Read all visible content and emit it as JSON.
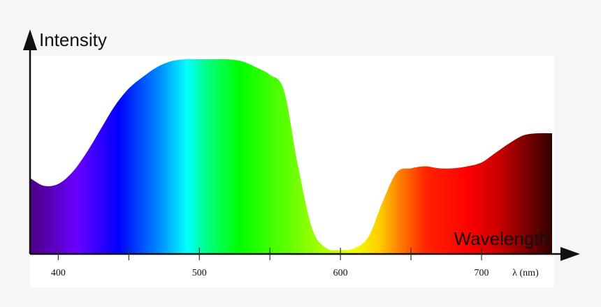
{
  "chart_data": {
    "type": "area",
    "title": "",
    "ylabel": "Intensity",
    "xlabel": "Wavelength",
    "x_unit_label": "λ (nm)",
    "xlim": [
      380,
      750
    ],
    "ylim": [
      0,
      1
    ],
    "x_ticks": [
      400,
      450,
      500,
      550,
      600,
      650,
      700
    ],
    "x_tick_labels": [
      "400",
      "500",
      "600",
      "700"
    ],
    "x_tick_labeled_values": [
      400,
      500,
      600,
      700
    ],
    "grid": false,
    "legend": "none",
    "fill": "visible spectrum gradient (violet to dark red)",
    "x": [
      380,
      390,
      400,
      410,
      420,
      430,
      440,
      450,
      460,
      470,
      480,
      490,
      500,
      510,
      520,
      530,
      540,
      550,
      560,
      570,
      580,
      590,
      600,
      610,
      620,
      630,
      640,
      650,
      660,
      670,
      680,
      690,
      700,
      710,
      720,
      730,
      740,
      750
    ],
    "y": [
      0.39,
      0.35,
      0.36,
      0.42,
      0.52,
      0.64,
      0.76,
      0.85,
      0.91,
      0.96,
      0.99,
      1.0,
      1.0,
      1.0,
      1.0,
      0.99,
      0.96,
      0.92,
      0.84,
      0.45,
      0.13,
      0.03,
      0.02,
      0.03,
      0.09,
      0.27,
      0.42,
      0.44,
      0.45,
      0.44,
      0.44,
      0.45,
      0.47,
      0.52,
      0.57,
      0.61,
      0.62,
      0.62
    ]
  }
}
